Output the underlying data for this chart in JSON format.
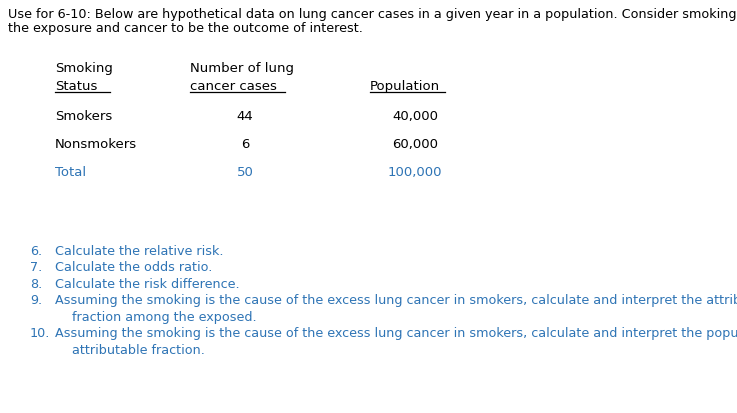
{
  "intro_text_line1": "Use for 6-10: Below are hypothetical data on lung cancer cases in a given year in a population. Consider smoking to be",
  "intro_text_line2": "the exposure and cancer to be the outcome of interest.",
  "col1_header1": "Smoking",
  "col2_header1": "Number of lung",
  "col1_header2": "Status",
  "col2_header2": "cancer cases",
  "col3_header2": "Population",
  "rows": [
    [
      "Smokers",
      "44",
      "40,000"
    ],
    [
      "Nonsmokers",
      "6",
      "60,000"
    ],
    [
      "Total",
      "50",
      "100,000"
    ]
  ],
  "row_colors": [
    "#000000",
    "#000000",
    "#2e74b5"
  ],
  "questions": [
    "Calculate the relative risk.",
    "Calculate the odds ratio.",
    "Calculate the risk difference.",
    "Assuming the smoking is the cause of the excess lung cancer in smokers, calculate and interpret the attributable",
    "Assuming the smoking is the cause of the excess lung cancer in smokers, calculate and interpret the population"
  ],
  "question_line2": [
    "",
    "",
    "",
    "fraction among the exposed.",
    "attributable fraction."
  ],
  "question_numbers": [
    "6.",
    "7.",
    "8.",
    "9.",
    "10."
  ],
  "blue": "#2e74b5",
  "black": "#000000",
  "bg_color": "#ffffff",
  "fs_intro": 9.2,
  "fs_table": 9.5,
  "fs_q": 9.2
}
